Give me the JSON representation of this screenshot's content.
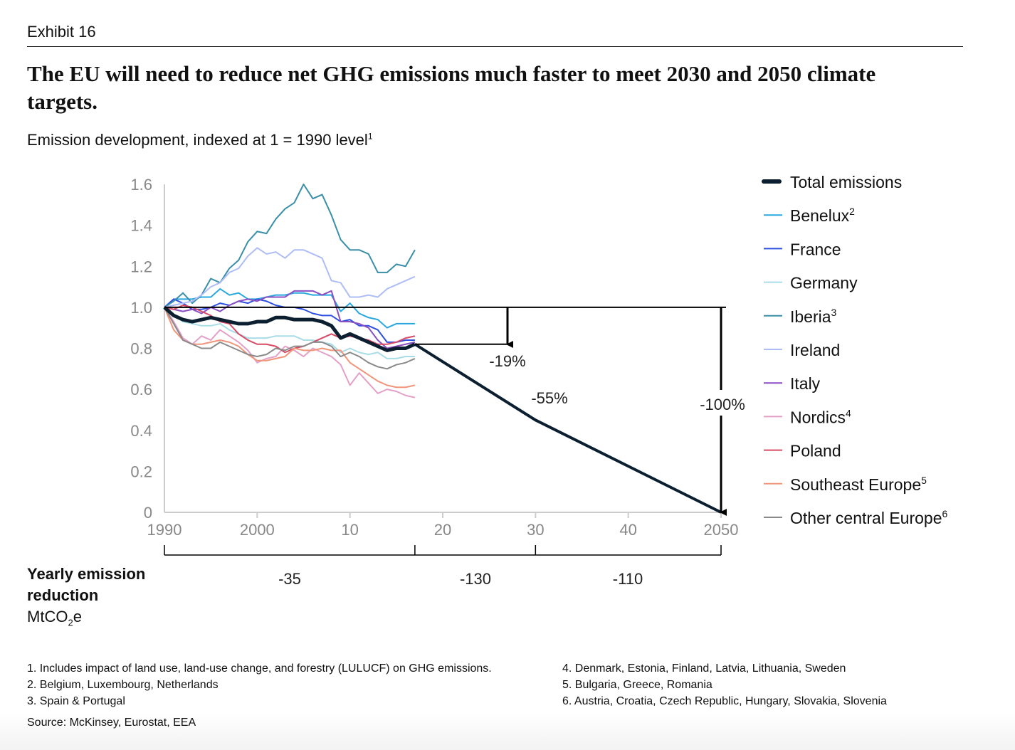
{
  "header": {
    "exhibit": "Exhibit 16",
    "title": "The EU will need to reduce net GHG emissions much faster to meet 2030 and 2050 climate targets.",
    "subtitle": "Emission development, indexed at 1 = 1990 level",
    "subtitle_sup": "1"
  },
  "chart_data": {
    "type": "line",
    "ylabel": "Emission development, indexed at 1 = 1990 level",
    "ylim": [
      0,
      1.6
    ],
    "yticks": [
      "0",
      "0.2",
      "0.4",
      "0.6",
      "0.8",
      "1.0",
      "1.2",
      "1.4",
      "1.6"
    ],
    "yticks_values": [
      0,
      0.2,
      0.4,
      0.6,
      0.8,
      1.0,
      1.2,
      1.4,
      1.6
    ],
    "xlim": [
      1990,
      2050
    ],
    "xticks": [
      "1990",
      "2000",
      "10",
      "20",
      "30",
      "40",
      "2050"
    ],
    "xticks_values": [
      1990,
      2000,
      2010,
      2020,
      2030,
      2040,
      2050
    ],
    "x_start": 1990,
    "legend_position": "right",
    "series": [
      {
        "name": "Benelux",
        "sup": "2",
        "color": "#29a8e0",
        "values": [
          1.0,
          1.04,
          1.04,
          1.04,
          1.05,
          1.05,
          1.09,
          1.06,
          1.07,
          1.04,
          1.04,
          1.05,
          1.06,
          1.06,
          1.07,
          1.07,
          1.06,
          1.06,
          1.06,
          0.98,
          1.02,
          0.97,
          0.95,
          0.94,
          0.9,
          0.92,
          0.92,
          0.92
        ]
      },
      {
        "name": "France",
        "sup": "",
        "color": "#2e4fe0",
        "values": [
          1.0,
          1.04,
          1.02,
          0.99,
          0.99,
          1.0,
          1.02,
          1.01,
          1.03,
          1.02,
          1.04,
          1.03,
          1.01,
          1.0,
          1.0,
          0.99,
          0.97,
          0.96,
          0.96,
          0.93,
          0.94,
          0.91,
          0.91,
          0.89,
          0.83,
          0.83,
          0.84,
          0.84
        ]
      },
      {
        "name": "Germany",
        "sup": "",
        "color": "#a8dde8",
        "values": [
          1.0,
          0.96,
          0.93,
          0.92,
          0.91,
          0.91,
          0.92,
          0.89,
          0.87,
          0.85,
          0.85,
          0.85,
          0.86,
          0.86,
          0.86,
          0.84,
          0.84,
          0.83,
          0.82,
          0.78,
          0.8,
          0.78,
          0.77,
          0.78,
          0.75,
          0.75,
          0.76,
          0.76
        ]
      },
      {
        "name": "Iberia",
        "sup": "3",
        "color": "#3a8fa8",
        "values": [
          1.0,
          1.03,
          1.07,
          1.02,
          1.06,
          1.14,
          1.12,
          1.19,
          1.23,
          1.32,
          1.37,
          1.36,
          1.43,
          1.48,
          1.51,
          1.6,
          1.53,
          1.55,
          1.45,
          1.33,
          1.28,
          1.28,
          1.26,
          1.17,
          1.17,
          1.21,
          1.2,
          1.28
        ]
      },
      {
        "name": "Ireland",
        "sup": "",
        "color": "#aebdf5",
        "values": [
          1.0,
          1.01,
          1.02,
          1.03,
          1.06,
          1.1,
          1.12,
          1.17,
          1.19,
          1.25,
          1.29,
          1.26,
          1.27,
          1.24,
          1.28,
          1.28,
          1.26,
          1.24,
          1.13,
          1.12,
          1.05,
          1.05,
          1.06,
          1.05,
          1.09,
          1.11,
          1.13,
          1.15
        ]
      },
      {
        "name": "Italy",
        "sup": "",
        "color": "#8a4fc0",
        "values": [
          1.0,
          0.99,
          0.98,
          0.99,
          0.97,
          1.0,
          0.98,
          1.01,
          1.03,
          1.04,
          1.03,
          1.05,
          1.05,
          1.05,
          1.08,
          1.08,
          1.08,
          1.06,
          1.08,
          0.93,
          0.93,
          0.92,
          0.9,
          0.84,
          0.8,
          0.81,
          0.82,
          0.83
        ]
      },
      {
        "name": "Nordics",
        "sup": "4",
        "color": "#e3a0c8",
        "values": [
          1.0,
          0.93,
          0.85,
          0.82,
          0.86,
          0.84,
          0.89,
          0.86,
          0.83,
          0.79,
          0.73,
          0.75,
          0.76,
          0.81,
          0.79,
          0.76,
          0.8,
          0.78,
          0.76,
          0.72,
          0.62,
          0.68,
          0.63,
          0.58,
          0.6,
          0.59,
          0.57,
          0.56
        ]
      },
      {
        "name": "Poland",
        "sup": "",
        "color": "#d94a65",
        "values": [
          1.0,
          0.99,
          1.01,
          1.0,
          0.98,
          0.96,
          0.93,
          0.92,
          0.87,
          0.84,
          0.82,
          0.82,
          0.81,
          0.78,
          0.8,
          0.81,
          0.83,
          0.85,
          0.87,
          0.85,
          0.86,
          0.85,
          0.84,
          0.82,
          0.82,
          0.83,
          0.85,
          0.86
        ]
      },
      {
        "name": "Southeast Europe",
        "sup": "5",
        "color": "#f0957a",
        "values": [
          1.0,
          0.89,
          0.84,
          0.82,
          0.82,
          0.83,
          0.84,
          0.83,
          0.81,
          0.77,
          0.74,
          0.74,
          0.75,
          0.76,
          0.8,
          0.79,
          0.79,
          0.8,
          0.79,
          0.79,
          0.73,
          0.7,
          0.67,
          0.64,
          0.62,
          0.61,
          0.61,
          0.62
        ]
      },
      {
        "name": "Other central Europe",
        "sup": "6",
        "color": "#8a8a8a",
        "values": [
          1.0,
          0.92,
          0.84,
          0.82,
          0.8,
          0.8,
          0.83,
          0.81,
          0.79,
          0.77,
          0.76,
          0.77,
          0.8,
          0.79,
          0.81,
          0.81,
          0.83,
          0.83,
          0.81,
          0.76,
          0.78,
          0.76,
          0.73,
          0.71,
          0.7,
          0.72,
          0.73,
          0.75
        ]
      },
      {
        "name": "Total emissions",
        "sup": "",
        "color": "#0b1f30",
        "values": [
          1.0,
          0.96,
          0.94,
          0.93,
          0.94,
          0.95,
          0.94,
          0.93,
          0.92,
          0.92,
          0.93,
          0.93,
          0.95,
          0.95,
          0.94,
          0.94,
          0.94,
          0.93,
          0.91,
          0.85,
          0.87,
          0.85,
          0.83,
          0.81,
          0.79,
          0.8,
          0.8,
          0.82
        ]
      }
    ],
    "target_path": {
      "x": [
        2017,
        2030,
        2050
      ],
      "y": [
        0.82,
        0.45,
        0
      ]
    },
    "annotations": [
      {
        "text": "-19%",
        "x": 2027,
        "y": 0.74
      },
      {
        "text": "-55%",
        "x": 2031.5,
        "y": 0.55
      },
      {
        "text": "-100%",
        "x": 2050,
        "y": 0.53
      }
    ],
    "reductions": {
      "label": "Yearly emission reduction",
      "unit": "MtCO",
      "unit_sub": "2",
      "unit_end": "e",
      "periods": [
        {
          "from": 1990,
          "to": 2017,
          "value": "-35"
        },
        {
          "from": 2017,
          "to": 2030,
          "value": "-130"
        },
        {
          "from": 2030,
          "to": 2050,
          "value": "-110"
        }
      ]
    }
  },
  "footnotes": {
    "left": [
      "1.  Includes impact of land use, land-use change, and forestry (LULUCF) on GHG emissions.",
      "2. Belgium, Luxembourg, Netherlands",
      "3. Spain & Portugal"
    ],
    "right": [
      "4. Denmark, Estonia, Finland, Latvia, Lithuania, Sweden",
      "5. Bulgaria, Greece, Romania",
      "6. Austria, Croatia, Czech Republic, Hungary, Slovakia, Slovenia"
    ],
    "source": "Source: McKinsey, Eurostat, EEA"
  }
}
